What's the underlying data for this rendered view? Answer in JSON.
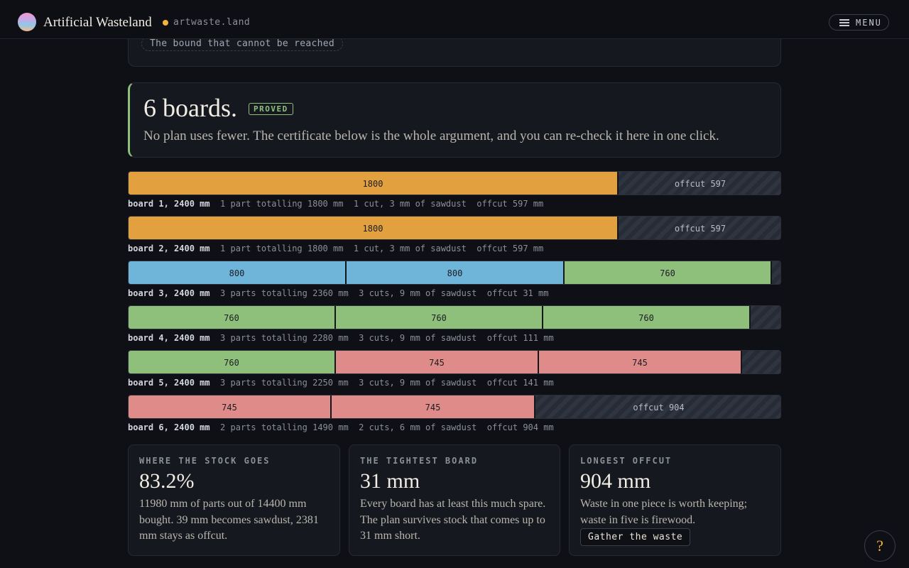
{
  "header": {
    "title": "Artificial Wasteland",
    "domain": "artwaste.land",
    "menu_label": "MENU"
  },
  "prev_card": {
    "bound_pill": "The bound that cannot be reached"
  },
  "proof": {
    "title": "6 boards.",
    "badge": "PROVED",
    "subtitle": "No plan uses fewer. The certificate below is the whole argument, and you can re-check it here in one click."
  },
  "boards": [
    {
      "name": "board 1, 2400 mm",
      "parts": "1 part totalling 1800 mm",
      "cuts": "1 cut, 3 mm of sawdust",
      "offcut": "offcut 597 mm",
      "segments": [
        {
          "label": "1800"
        }
      ],
      "offcut_label": "offcut 597"
    },
    {
      "name": "board 2, 2400 mm",
      "parts": "1 part totalling 1800 mm",
      "cuts": "1 cut, 3 mm of sawdust",
      "offcut": "offcut 597 mm",
      "segments": [
        {
          "label": "1800"
        }
      ],
      "offcut_label": "offcut 597"
    },
    {
      "name": "board 3, 2400 mm",
      "parts": "3 parts totalling 2360 mm",
      "cuts": "3 cuts, 9 mm of sawdust",
      "offcut": "offcut 31 mm",
      "segments": [
        {
          "label": "800"
        },
        {
          "label": "800"
        },
        {
          "label": "760"
        }
      ]
    },
    {
      "name": "board 4, 2400 mm",
      "parts": "3 parts totalling 2280 mm",
      "cuts": "3 cuts, 9 mm of sawdust",
      "offcut": "offcut 111 mm",
      "segments": [
        {
          "label": "760"
        },
        {
          "label": "760"
        },
        {
          "label": "760"
        }
      ]
    },
    {
      "name": "board 5, 2400 mm",
      "parts": "3 parts totalling 2250 mm",
      "cuts": "3 cuts, 9 mm of sawdust",
      "offcut": "offcut 141 mm",
      "segments": [
        {
          "label": "760"
        },
        {
          "label": "745"
        },
        {
          "label": "745"
        }
      ]
    },
    {
      "name": "board 6, 2400 mm",
      "parts": "2 parts totalling 1490 mm",
      "cuts": "2 cuts, 6 mm of sawdust",
      "offcut": "offcut 904 mm",
      "segments": [
        {
          "label": "745"
        },
        {
          "label": "745"
        }
      ],
      "offcut_label": "offcut 904"
    }
  ],
  "stats": [
    {
      "label": "WHERE THE STOCK GOES",
      "value": "83.2%",
      "desc": "11980 mm of parts out of 14400 mm bought. 39 mm becomes sawdust, 2381 mm stays as offcut."
    },
    {
      "label": "THE TIGHTEST BOARD",
      "value": "31 mm",
      "desc": "Every board has at least this much spare. The plan survives stock that comes up to 31 mm short."
    },
    {
      "label": "LONGEST OFFCUT",
      "value": "904 mm",
      "desc": "Waste in one piece is worth keeping; waste in five is firewood.",
      "button": "Gather the waste"
    }
  ],
  "help": "?",
  "colors": {
    "part_1800": "#e3a03e",
    "part_800": "#6fb4d9",
    "part_760": "#8ec07c",
    "part_745": "#de8b8a",
    "accent": "#8ec07c",
    "help": "#f3b43a"
  }
}
